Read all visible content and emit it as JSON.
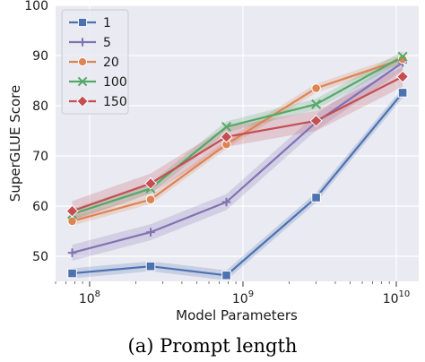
{
  "caption": "(a) Prompt length",
  "chart_data": {
    "type": "line",
    "xlabel": "Model Parameters",
    "ylabel": "SuperGLUE Score",
    "x_scale": "log",
    "xlim": [
      60000000,
      14000000000
    ],
    "ylim": [
      45,
      100
    ],
    "xticks": [
      {
        "value": 100000000,
        "base": "10",
        "exp": "8"
      },
      {
        "value": 1000000000,
        "base": "10",
        "exp": "9"
      },
      {
        "value": 10000000000,
        "base": "10",
        "exp": "10"
      }
    ],
    "yticks": [
      50,
      60,
      70,
      80,
      90,
      100
    ],
    "grid": true,
    "legend_position": "top-left",
    "x": [
      77000000,
      250000000,
      780000000,
      3000000000,
      11000000000
    ],
    "series": [
      {
        "name": "1",
        "color": "#4c72b0",
        "marker": "square",
        "values": [
          46.6,
          48.0,
          46.2,
          61.7,
          82.6
        ],
        "band": 1.0
      },
      {
        "name": "5",
        "color": "#8172b3",
        "marker": "plus",
        "values": [
          50.7,
          54.8,
          60.8,
          76.7,
          88.6
        ],
        "band": 1.6
      },
      {
        "name": "20",
        "color": "#dd8452",
        "marker": "circle",
        "values": [
          57.0,
          61.3,
          72.3,
          83.5,
          89.3
        ],
        "band": 0.9
      },
      {
        "name": "100",
        "color": "#55a868",
        "marker": "x",
        "values": [
          58.4,
          63.5,
          75.8,
          80.3,
          89.8
        ],
        "band": 1.1
      },
      {
        "name": "150",
        "color": "#c44e52",
        "marker": "diamond",
        "values": [
          59.0,
          64.5,
          73.8,
          77.0,
          85.8
        ],
        "band": 2.0
      }
    ]
  }
}
